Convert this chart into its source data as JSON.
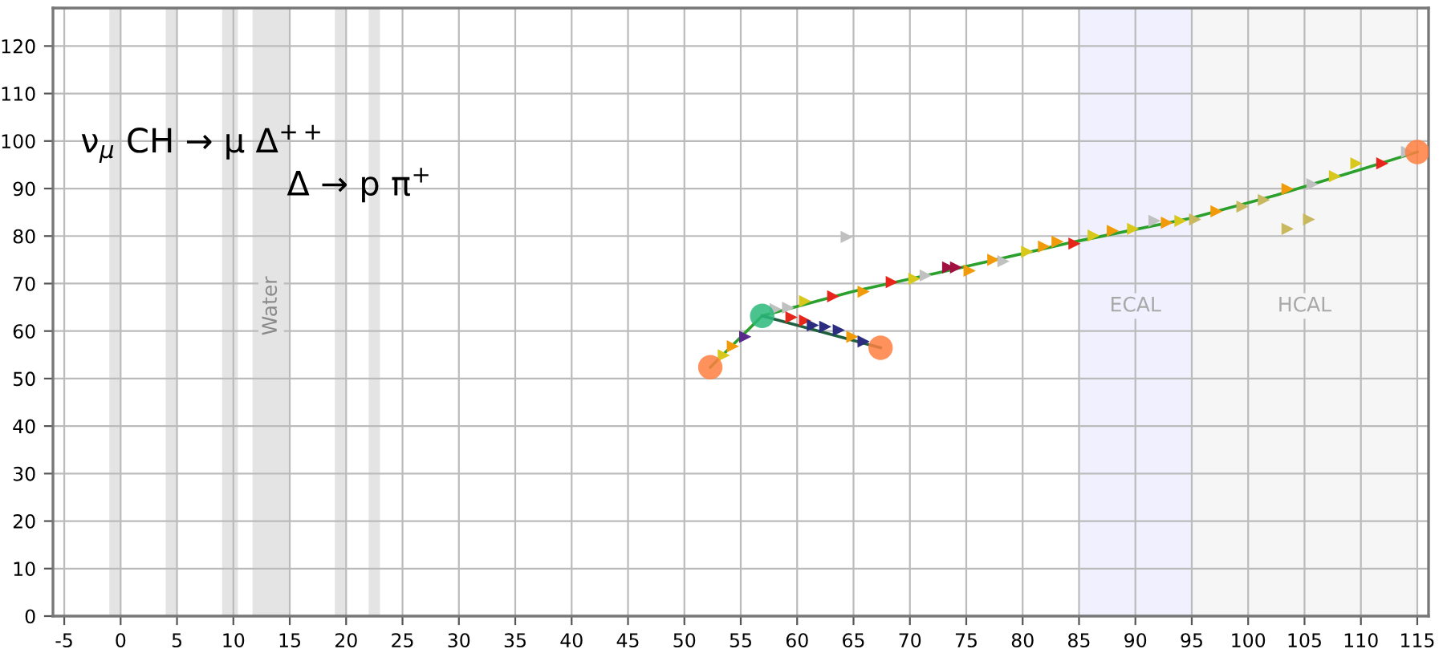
{
  "chart_data": {
    "type": "scatter",
    "annotations": [
      "ν$_{μ}$ CH → μ Δ$^{++}$",
      "Δ → p π$^{+}$"
    ],
    "xlim": [
      -6,
      116
    ],
    "ylim": [
      0,
      128
    ],
    "xticks": [
      -5,
      0,
      5,
      10,
      15,
      20,
      25,
      30,
      35,
      40,
      45,
      50,
      55,
      60,
      65,
      70,
      75,
      80,
      85,
      90,
      95,
      100,
      105,
      110,
      115
    ],
    "yticks": [
      0,
      10,
      20,
      30,
      40,
      50,
      60,
      70,
      80,
      90,
      100,
      110,
      120
    ],
    "grid": true,
    "bands": [
      {
        "axis": "x",
        "from": 11.7,
        "to": 15,
        "label": "Water",
        "color": "#e4e4e4"
      },
      {
        "axis": "x",
        "from": -1,
        "to": 0,
        "label": null,
        "color": "#e4e4e4"
      },
      {
        "axis": "x",
        "from": 4,
        "to": 5,
        "label": null,
        "color": "#e4e4e4"
      },
      {
        "axis": "x",
        "from": 9,
        "to": 10.4,
        "label": null,
        "color": "#e4e4e4"
      },
      {
        "axis": "x",
        "from": 19,
        "to": 20,
        "label": null,
        "color": "#e4e4e4"
      },
      {
        "axis": "x",
        "from": 22,
        "to": 23,
        "label": null,
        "color": "#e4e4e4"
      },
      {
        "axis": "x",
        "from": 85,
        "to": 95,
        "label": "ECAL",
        "color": "#f0f0ff"
      },
      {
        "axis": "x",
        "from": 95,
        "to": 115,
        "label": "HCAL",
        "color": "#f6f6f6"
      }
    ],
    "series": [
      {
        "type": "line",
        "color": "#2ca02c",
        "x": [
          52.3,
          56.9,
          64.9,
          72.6,
          84.6,
          95,
          102.5,
          110,
          115
        ],
        "values": [
          52.4,
          63.2,
          68.3,
          72.3,
          78.8,
          83.8,
          88.6,
          94,
          97.7
        ]
      },
      {
        "type": "line",
        "color": "#1f5f3f",
        "x": [
          56.9,
          67.4
        ],
        "values": [
          63.2,
          56.5
        ]
      },
      {
        "marker": "triangle",
        "x": [
          53.5,
          54.3,
          55.4,
          58.1,
          59.2,
          60.7,
          63.2,
          65.9,
          68.4,
          70.4,
          71.4,
          73.4,
          74.1,
          75.3,
          77.4,
          78.3,
          80.4,
          81.9,
          83.1,
          84.6,
          86.3,
          88,
          89.8,
          91.7,
          92.8,
          94,
          95.3,
          97.2,
          99.5,
          101.4,
          103.5,
          105.7,
          107.7,
          109.6,
          111.9,
          114.1,
          103.5,
          105.4,
          64.4,
          59.5,
          60.7,
          61.4,
          62.5,
          63.7,
          64.9,
          65.9
        ],
        "values": [
          54.9,
          56.8,
          58.8,
          64.6,
          64.9,
          66.3,
          67.3,
          68.3,
          70.3,
          71,
          71.7,
          73.4,
          73.4,
          72.7,
          75,
          74.7,
          76.7,
          77.8,
          78.8,
          78.4,
          80.1,
          81.1,
          81.5,
          83.2,
          82.8,
          83.2,
          83.5,
          85.2,
          86.2,
          87.6,
          89.9,
          90.9,
          92.6,
          95.3,
          95.3,
          97.7,
          81.5,
          83.5,
          79.8,
          62.9,
          62.2,
          61.2,
          60.9,
          60.2,
          58.8,
          57.8
        ],
        "colors": [
          "#d8c81c",
          "#f29b0a",
          "#5a2a8a",
          "#c0c0c0",
          "#c0c0c0",
          "#d8c81c",
          "#e8251a",
          "#f29b0a",
          "#e8251a",
          "#d8c81c",
          "#c0c0c0",
          "#a01040",
          "#a01040",
          "#f29b0a",
          "#f29b0a",
          "#c0c0c0",
          "#d8c81c",
          "#f29b0a",
          "#f29b0a",
          "#e8251a",
          "#d8c81c",
          "#f29b0a",
          "#d8c81c",
          "#c0c0c0",
          "#f29b0a",
          "#d8c81c",
          "#c8b860",
          "#f29b0a",
          "#c8b860",
          "#c8b860",
          "#f29b0a",
          "#c0c0c0",
          "#d8c81c",
          "#d8c81c",
          "#e8251a",
          "#c0c0c0",
          "#c8b860",
          "#c8b860",
          "#c0c0c0",
          "#e8251a",
          "#e8251a",
          "#2c2c80",
          "#2c2c80",
          "#2c2c80",
          "#f29b0a",
          "#2c2c80"
        ]
      },
      {
        "marker": "circle",
        "color": "#ff7f3f",
        "x": [
          52.3,
          67.4,
          115
        ],
        "values": [
          52.4,
          56.5,
          97.7
        ]
      },
      {
        "marker": "circle",
        "color": "#2cb87a",
        "x": [
          56.9
        ],
        "values": [
          63.2
        ]
      }
    ]
  }
}
